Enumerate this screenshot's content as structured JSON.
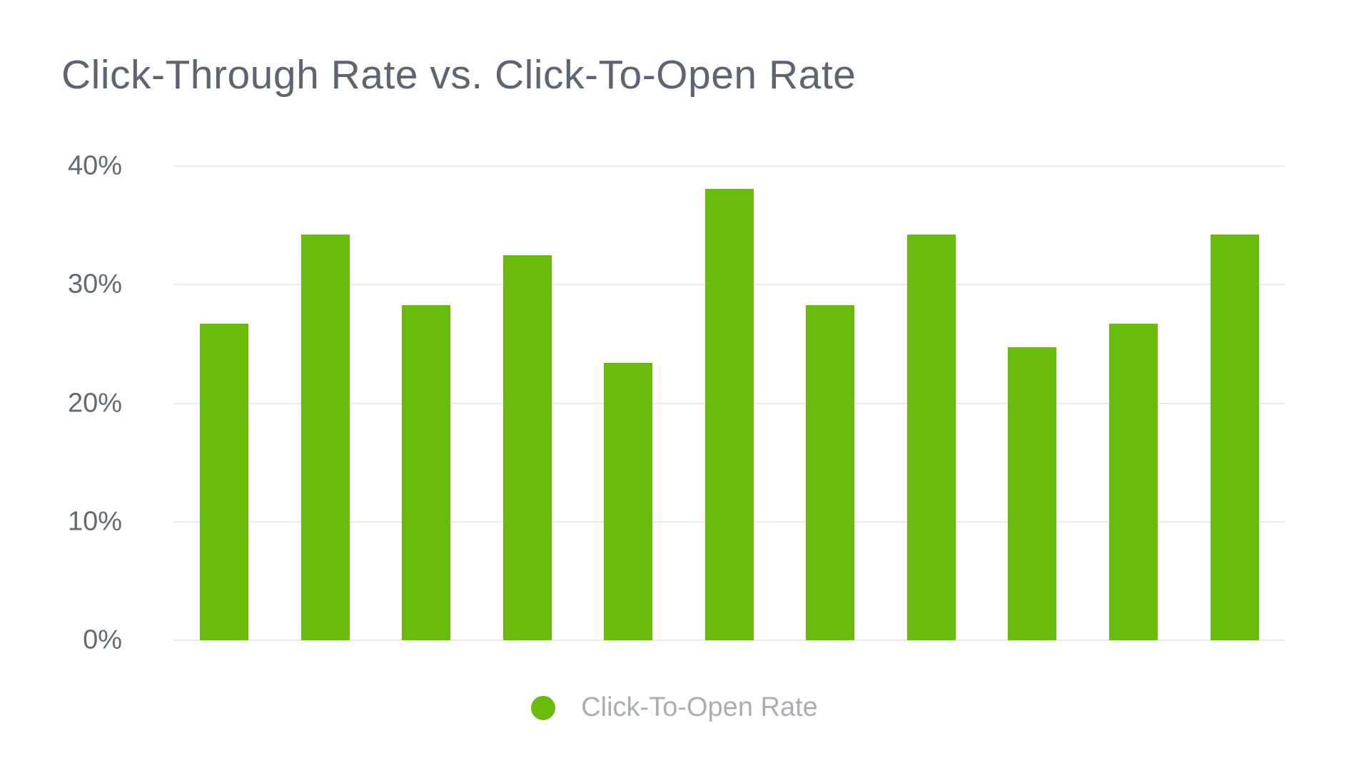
{
  "title": "Click-Through Rate vs. Click-To-Open Rate",
  "legend": {
    "label": "Click-To-Open Rate"
  },
  "colors": {
    "background": "#ffffff",
    "bar": "#6abc0c",
    "title_text": "#5e6571",
    "axis_text": "#626a75",
    "legend_text": "#a9aeb5",
    "gridline": "#e9eaec"
  },
  "y_axis": {
    "ticks": [
      {
        "label": "40%",
        "value": 40
      },
      {
        "label": "30%",
        "value": 30
      },
      {
        "label": "20%",
        "value": 20
      },
      {
        "label": "10%",
        "value": 10
      },
      {
        "label": "0%",
        "value": 0
      }
    ]
  },
  "chart_data": {
    "type": "bar",
    "title": "Click-Through Rate vs. Click-To-Open Rate",
    "categories": [
      "",
      "",
      "",
      "",
      "",
      "",
      "",
      "",
      "",
      "",
      ""
    ],
    "series": [
      {
        "name": "Click-To-Open Rate",
        "color": "#6abc0c",
        "values": [
          26.7,
          34.2,
          28.3,
          32.5,
          23.4,
          38.1,
          28.3,
          34.2,
          24.7,
          26.7,
          34.2
        ]
      }
    ],
    "xlabel": "",
    "ylabel": "",
    "ylim": [
      0,
      40
    ],
    "yticks": [
      "0%",
      "10%",
      "20%",
      "30%",
      "40%"
    ],
    "grid": true,
    "x_axis_labels_visible": false,
    "legend_position": "bottom-center"
  }
}
